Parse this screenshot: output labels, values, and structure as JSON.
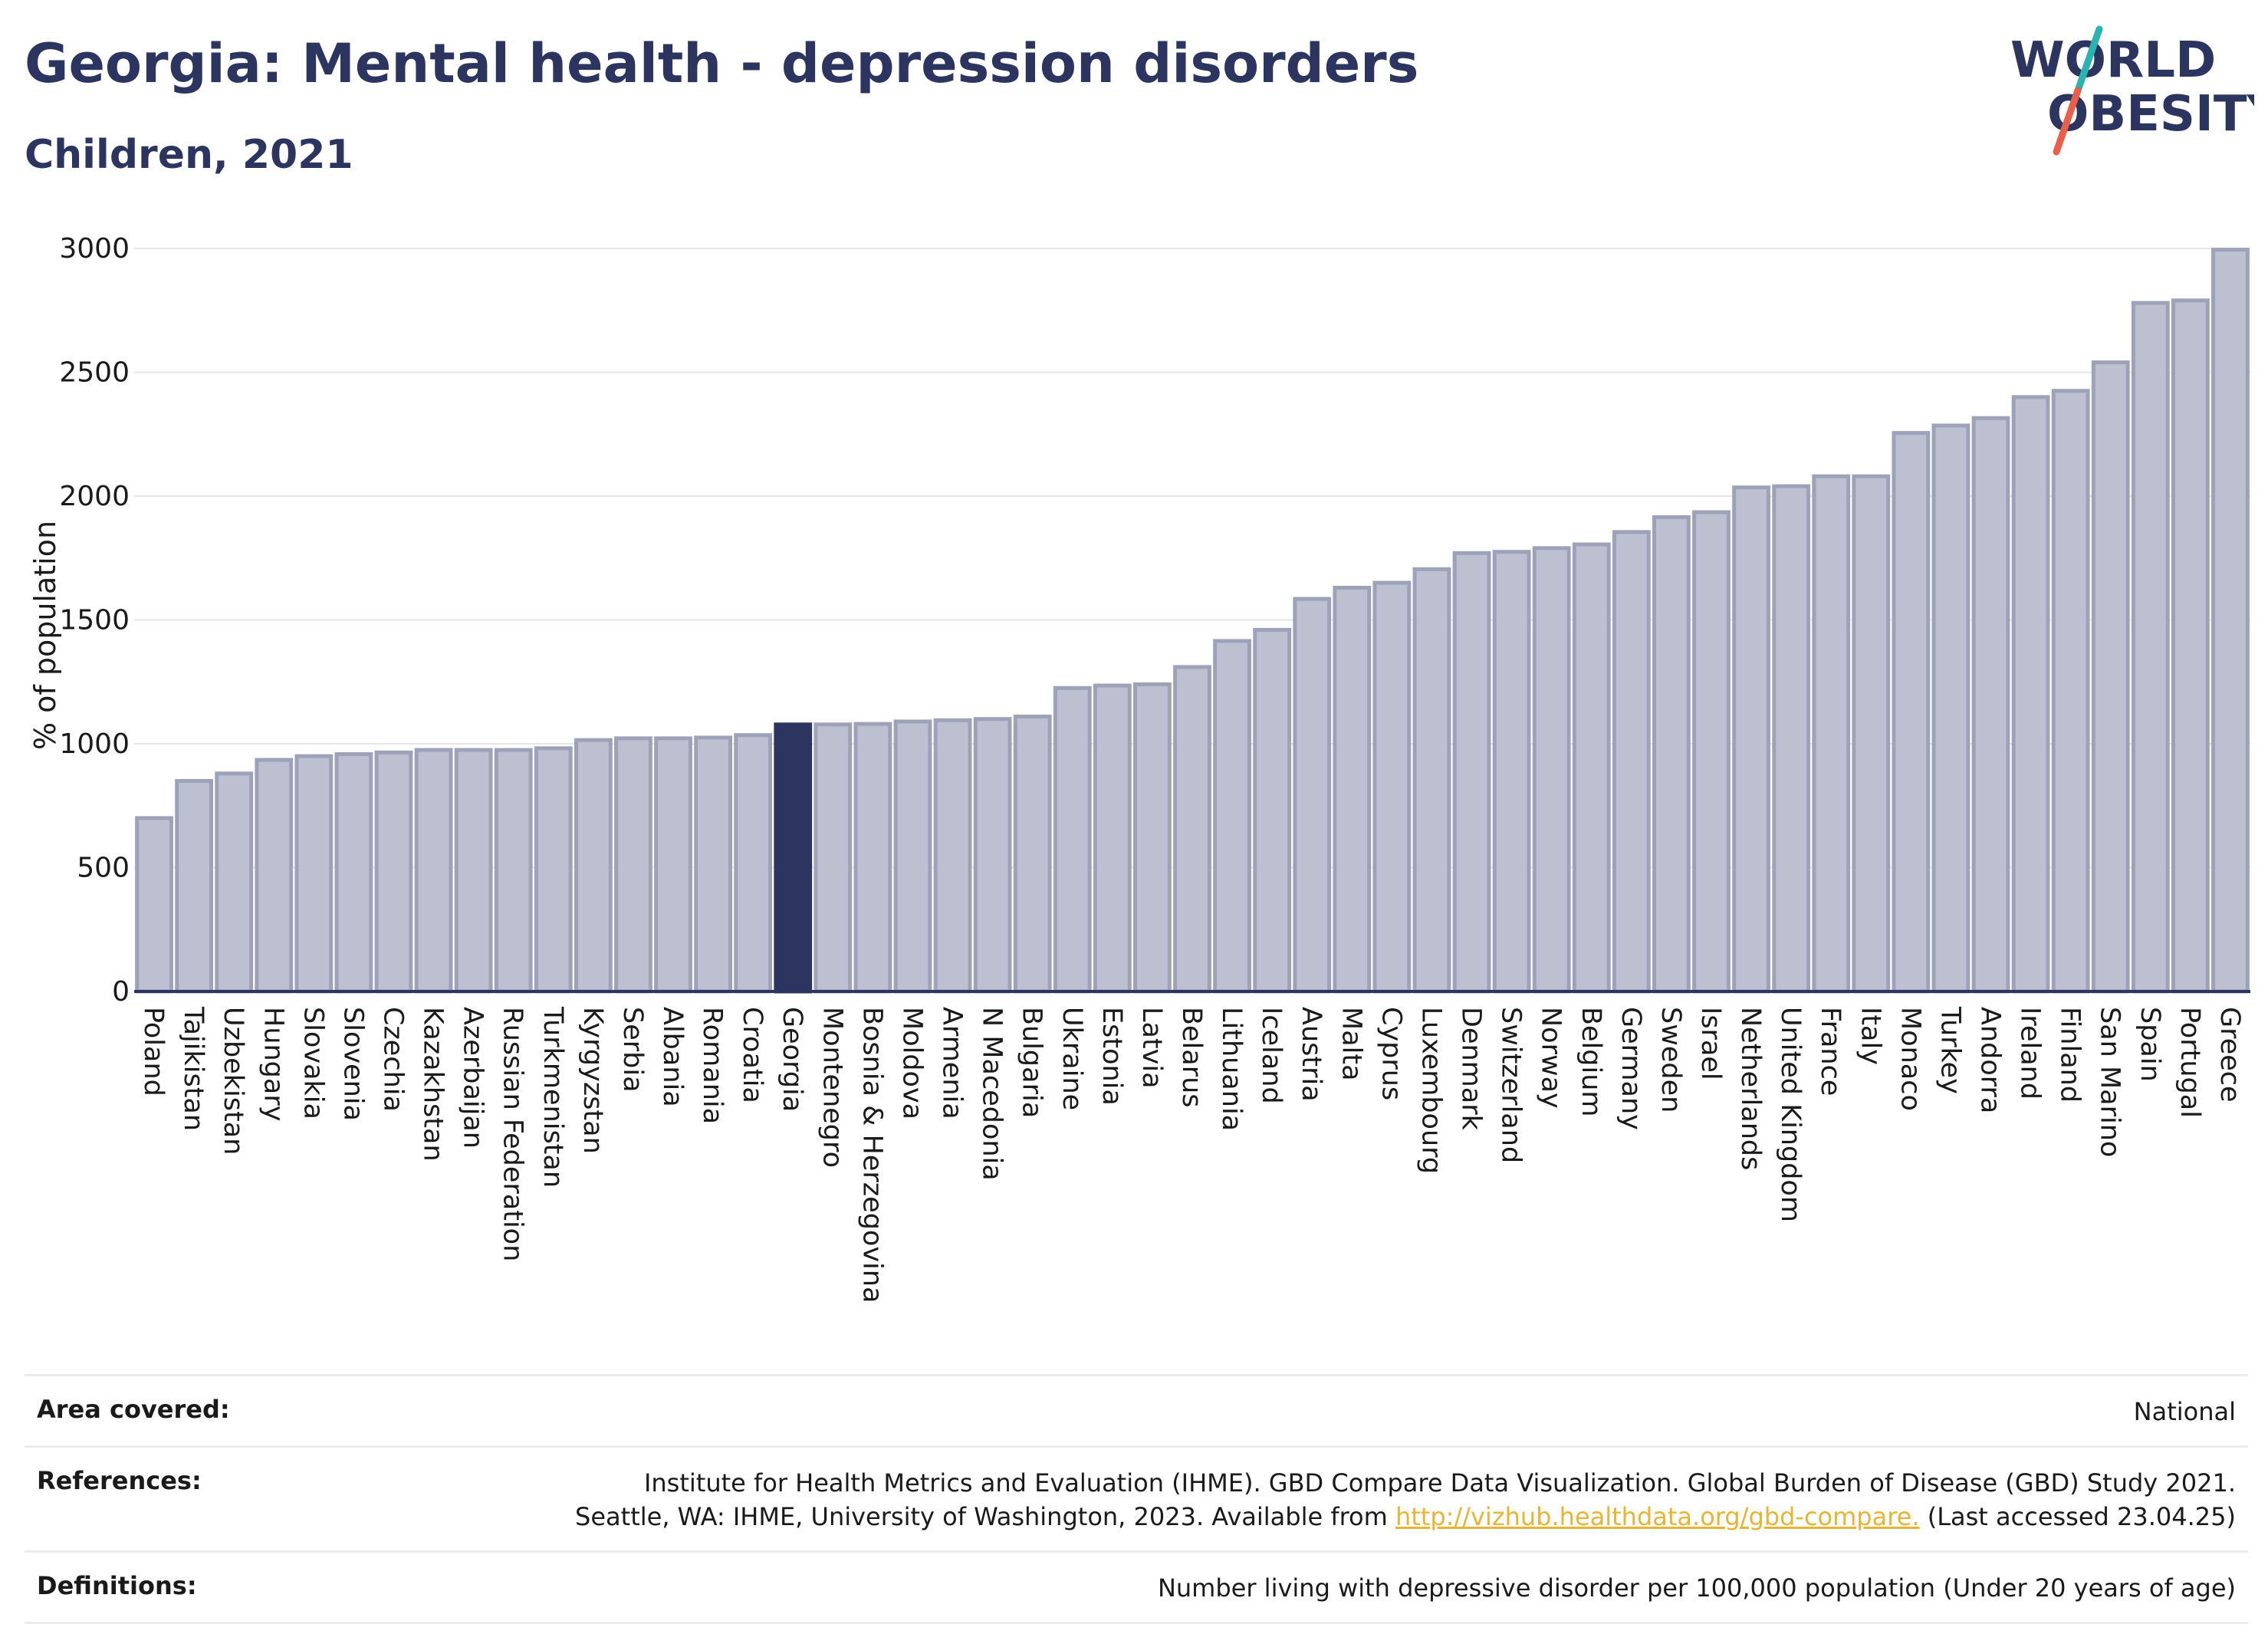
{
  "header": {
    "title": "Georgia: Mental health - depression disorders",
    "subtitle": "Children, 2021"
  },
  "logo": {
    "line1": "WORLD",
    "line2": "OBESITY",
    "text_color": "#2b3560",
    "slash_colors": [
      "#2bb3b1",
      "#e8604c"
    ]
  },
  "chart_data": {
    "type": "bar",
    "ylabel": "% of population",
    "ylim": [
      0,
      3000
    ],
    "yticks": [
      0,
      500,
      1000,
      1500,
      2000,
      2500,
      3000
    ],
    "grid": true,
    "highlight": "Georgia",
    "colors": {
      "bar": "#bcc0d0",
      "bar_border": "#9da2b9",
      "highlight": "#2b3560"
    },
    "categories": [
      "Poland",
      "Tajikistan",
      "Uzbekistan",
      "Hungary",
      "Slovakia",
      "Slovenia",
      "Czechia",
      "Kazakhstan",
      "Azerbaijan",
      "Russian Federation",
      "Turkmenistan",
      "Kyrgyzstan",
      "Serbia",
      "Albania",
      "Romania",
      "Croatia",
      "Georgia",
      "Montenegro",
      "Bosnia & Herzegovina",
      "Moldova",
      "Armenia",
      "N Macedonia",
      "Bulgaria",
      "Ukraine",
      "Estonia",
      "Latvia",
      "Belarus",
      "Lithuania",
      "Iceland",
      "Austria",
      "Malta",
      "Cyprus",
      "Luxembourg",
      "Denmark",
      "Switzerland",
      "Norway",
      "Belgium",
      "Germany",
      "Sweden",
      "Israel",
      "Netherlands",
      "United Kingdom",
      "France",
      "Italy",
      "Monaco",
      "Turkey",
      "Andorra",
      "Ireland",
      "Finland",
      "San Marino",
      "Spain",
      "Portugal",
      "Greece"
    ],
    "values": [
      700,
      850,
      880,
      935,
      950,
      958,
      965,
      975,
      975,
      975,
      982,
      1015,
      1022,
      1022,
      1025,
      1035,
      1078,
      1078,
      1080,
      1090,
      1095,
      1100,
      1110,
      1225,
      1235,
      1240,
      1310,
      1415,
      1460,
      1585,
      1630,
      1650,
      1705,
      1770,
      1775,
      1790,
      1805,
      1855,
      1915,
      1935,
      2035,
      2040,
      2080,
      2080,
      2255,
      2285,
      2315,
      2400,
      2425,
      2540,
      2780,
      2790,
      2995
    ]
  },
  "footer": {
    "area_label": "Area covered:",
    "area_value": "National",
    "references_label": "References:",
    "references_line1": "Institute for Health Metrics and Evaluation (IHME). GBD Compare Data Visualization. Global Burden of Disease (GBD) Study 2021.",
    "references_line2_prefix": "Seattle, WA: IHME, University of Washington, 2023. Available from ",
    "references_link": "http://vizhub.healthdata.org/gbd-compare.",
    "references_suffix": " (Last accessed 23.04.25)",
    "definitions_label": "Definitions:",
    "definitions_value": "Number living with depressive disorder per 100,000 population (Under 20 years of age)"
  }
}
